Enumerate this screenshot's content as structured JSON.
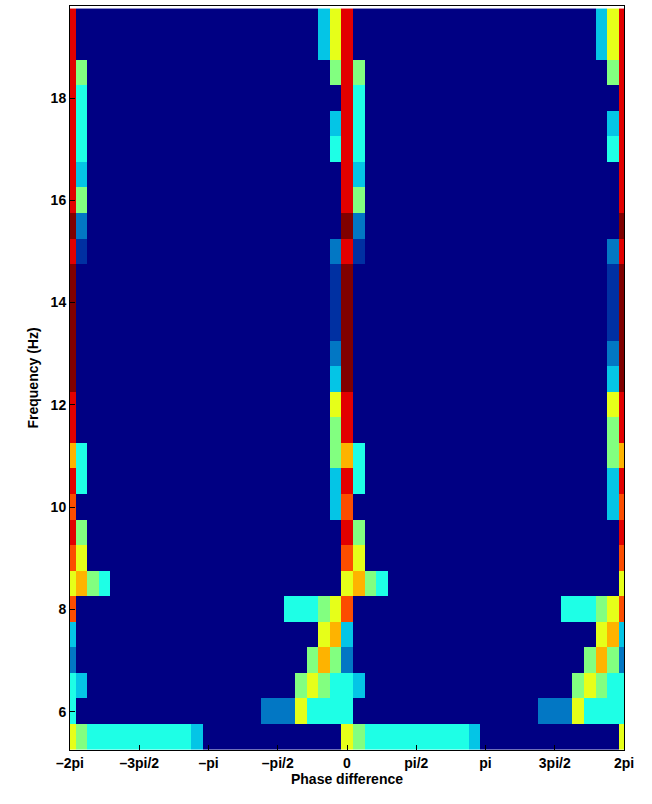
{
  "chart_data": {
    "type": "heatmap",
    "x_label": "Phase difference",
    "y_label": "Frequency (Hz)",
    "color": "jet",
    "grid": false,
    "color_range": [
      0,
      10
    ],
    "xlim": [
      -6.2832,
      6.2832
    ],
    "ylim": [
      5.25,
      19.8
    ],
    "xticks": [
      {
        "value": -6.2832,
        "label": "–2pi"
      },
      {
        "value": -4.7124,
        "label": "–3pi/2"
      },
      {
        "value": -3.1416,
        "label": "–pi"
      },
      {
        "value": -1.5708,
        "label": "–pi/2"
      },
      0,
      {
        "value": 1.5708,
        "label": "pi/2"
      },
      {
        "value": 3.1416,
        "label": "pi"
      },
      {
        "value": 4.7124,
        "label": "3pi/2"
      },
      {
        "value": 6.2832,
        "label": "2pi"
      }
    ],
    "yticks": [
      6,
      8,
      10,
      12,
      14,
      16,
      18
    ],
    "x": [
      -6.2832,
      -6.0214,
      -5.7596,
      -5.4978,
      -5.236,
      -4.9742,
      -4.7124,
      -4.4506,
      -4.1888,
      -3.927,
      -3.6652,
      -3.4034,
      -3.1416,
      -2.8798,
      -2.618,
      -2.3562,
      -2.0944,
      -1.8326,
      -1.5708,
      -1.309,
      -1.0472,
      -0.7854,
      -0.5236,
      -0.2618,
      0,
      0.2618,
      0.5236,
      0.7854,
      1.0472,
      1.309,
      1.5708,
      1.8326,
      2.0944,
      2.3562,
      2.618,
      2.8798,
      3.1416,
      3.4034,
      3.6652,
      3.927,
      4.1888,
      4.4506,
      4.7124,
      4.9742,
      5.236,
      5.4978,
      5.7596,
      6.0214,
      6.2832
    ],
    "y": [
      5.5,
      6,
      6.5,
      7,
      7.5,
      8,
      8.5,
      9,
      9.5,
      10,
      10.5,
      11,
      11.5,
      12,
      12.5,
      13,
      13.5,
      14,
      14.5,
      15,
      15.5,
      16,
      16.5,
      17,
      17.5,
      18,
      18.5,
      19,
      19.5
    ],
    "z": [
      [
        6,
        5,
        4,
        4,
        4,
        4,
        4,
        4,
        4,
        4,
        4,
        3,
        0,
        0,
        0,
        0,
        0,
        0,
        0,
        0,
        0,
        0,
        0,
        0,
        6,
        5,
        4,
        4,
        4,
        4,
        4,
        4,
        4,
        4,
        4,
        3,
        0,
        0,
        0,
        0,
        0,
        0,
        0,
        0,
        0,
        0,
        0,
        0,
        6
      ],
      [
        4,
        0,
        0,
        0,
        0,
        0,
        0,
        0,
        0,
        0,
        0,
        0,
        0,
        0,
        0,
        0,
        0,
        2,
        2,
        2,
        6,
        4,
        4,
        4,
        4,
        0,
        0,
        0,
        0,
        0,
        0,
        0,
        0,
        0,
        0,
        0,
        0,
        0,
        0,
        0,
        0,
        2,
        2,
        2,
        6,
        4,
        4,
        4,
        4
      ],
      [
        4,
        3,
        0,
        0,
        0,
        0,
        0,
        0,
        0,
        0,
        0,
        0,
        0,
        0,
        0,
        0,
        0,
        0,
        0,
        0,
        5,
        6,
        5,
        4,
        4,
        3,
        0,
        0,
        0,
        0,
        0,
        0,
        0,
        0,
        0,
        0,
        0,
        0,
        0,
        0,
        0,
        0,
        0,
        0,
        5,
        6,
        5,
        4,
        4
      ],
      [
        2,
        0,
        0,
        0,
        0,
        0,
        0,
        0,
        0,
        0,
        0,
        0,
        0,
        0,
        0,
        0,
        0,
        0,
        0,
        0,
        0,
        5,
        7,
        5,
        2,
        0,
        0,
        0,
        0,
        0,
        0,
        0,
        0,
        0,
        0,
        0,
        0,
        0,
        0,
        0,
        0,
        0,
        0,
        0,
        0,
        5,
        7,
        5,
        2
      ],
      [
        3,
        0,
        0,
        0,
        0,
        0,
        0,
        0,
        0,
        0,
        0,
        0,
        0,
        0,
        0,
        0,
        0,
        0,
        0,
        0,
        0,
        0,
        6,
        7,
        3,
        0,
        0,
        0,
        0,
        0,
        0,
        0,
        0,
        0,
        0,
        0,
        0,
        0,
        0,
        0,
        0,
        0,
        0,
        0,
        0,
        0,
        6,
        7,
        3
      ],
      [
        8,
        0,
        0,
        0,
        0,
        0,
        0,
        0,
        0,
        0,
        0,
        0,
        0,
        0,
        0,
        0,
        0,
        0,
        0,
        4,
        4,
        4,
        5,
        6,
        8,
        0,
        0,
        0,
        0,
        0,
        0,
        0,
        0,
        0,
        0,
        0,
        0,
        0,
        0,
        0,
        0,
        0,
        0,
        4,
        4,
        4,
        5,
        6,
        8
      ],
      [
        6,
        7,
        5,
        4,
        0,
        0,
        0,
        0,
        0,
        0,
        0,
        0,
        0,
        0,
        0,
        0,
        0,
        0,
        0,
        0,
        0,
        0,
        0,
        0,
        6,
        7,
        5,
        4,
        0,
        0,
        0,
        0,
        0,
        0,
        0,
        0,
        0,
        0,
        0,
        0,
        0,
        0,
        0,
        0,
        0,
        0,
        0,
        0,
        6
      ],
      [
        8,
        6,
        0,
        0,
        0,
        0,
        0,
        0,
        0,
        0,
        0,
        0,
        0,
        0,
        0,
        0,
        0,
        0,
        0,
        0,
        0,
        0,
        0,
        0,
        8,
        6,
        0,
        0,
        0,
        0,
        0,
        0,
        0,
        0,
        0,
        0,
        0,
        0,
        0,
        0,
        0,
        0,
        0,
        0,
        0,
        0,
        0,
        0,
        8
      ],
      [
        9,
        5,
        0,
        0,
        0,
        0,
        0,
        0,
        0,
        0,
        0,
        0,
        0,
        0,
        0,
        0,
        0,
        0,
        0,
        0,
        0,
        0,
        0,
        0,
        9,
        5,
        0,
        0,
        0,
        0,
        0,
        0,
        0,
        0,
        0,
        0,
        0,
        0,
        0,
        0,
        0,
        0,
        0,
        0,
        0,
        0,
        0,
        0,
        9
      ],
      [
        8,
        0,
        0,
        0,
        0,
        0,
        0,
        0,
        0,
        0,
        0,
        0,
        0,
        0,
        0,
        0,
        0,
        0,
        0,
        0,
        0,
        0,
        0,
        3,
        8,
        0,
        0,
        0,
        0,
        0,
        0,
        0,
        0,
        0,
        0,
        0,
        0,
        0,
        0,
        0,
        0,
        0,
        0,
        0,
        0,
        0,
        0,
        3,
        8
      ],
      [
        9,
        4,
        0,
        0,
        0,
        0,
        0,
        0,
        0,
        0,
        0,
        0,
        0,
        0,
        0,
        0,
        0,
        0,
        0,
        0,
        0,
        0,
        0,
        3,
        9,
        4,
        0,
        0,
        0,
        0,
        0,
        0,
        0,
        0,
        0,
        0,
        0,
        0,
        0,
        0,
        0,
        0,
        0,
        0,
        0,
        0,
        0,
        3,
        9
      ],
      [
        7,
        4,
        0,
        0,
        0,
        0,
        0,
        0,
        0,
        0,
        0,
        0,
        0,
        0,
        0,
        0,
        0,
        0,
        0,
        0,
        0,
        0,
        0,
        5,
        7,
        4,
        0,
        0,
        0,
        0,
        0,
        0,
        0,
        0,
        0,
        0,
        0,
        0,
        0,
        0,
        0,
        0,
        0,
        0,
        0,
        0,
        0,
        5,
        7
      ],
      [
        9,
        0,
        0,
        0,
        0,
        0,
        0,
        0,
        0,
        0,
        0,
        0,
        0,
        0,
        0,
        0,
        0,
        0,
        0,
        0,
        0,
        0,
        0,
        5,
        9,
        0,
        0,
        0,
        0,
        0,
        0,
        0,
        0,
        0,
        0,
        0,
        0,
        0,
        0,
        0,
        0,
        0,
        0,
        0,
        0,
        0,
        0,
        5,
        9
      ],
      [
        9,
        0,
        0,
        0,
        0,
        0,
        0,
        0,
        0,
        0,
        0,
        0,
        0,
        0,
        0,
        0,
        0,
        0,
        0,
        0,
        0,
        0,
        0,
        6,
        9,
        0,
        0,
        0,
        0,
        0,
        0,
        0,
        0,
        0,
        0,
        0,
        0,
        0,
        0,
        0,
        0,
        0,
        0,
        0,
        0,
        0,
        0,
        6,
        9
      ],
      [
        10,
        0,
        0,
        0,
        0,
        0,
        0,
        0,
        0,
        0,
        0,
        0,
        0,
        0,
        0,
        0,
        0,
        0,
        0,
        0,
        0,
        0,
        0,
        3,
        10,
        0,
        0,
        0,
        0,
        0,
        0,
        0,
        0,
        0,
        0,
        0,
        0,
        0,
        0,
        0,
        0,
        0,
        0,
        0,
        0,
        0,
        0,
        3,
        10
      ],
      [
        10,
        0,
        0,
        0,
        0,
        0,
        0,
        0,
        0,
        0,
        0,
        0,
        0,
        0,
        0,
        0,
        0,
        0,
        0,
        0,
        0,
        0,
        0,
        2,
        10,
        0,
        0,
        0,
        0,
        0,
        0,
        0,
        0,
        0,
        0,
        0,
        0,
        0,
        0,
        0,
        0,
        0,
        0,
        0,
        0,
        0,
        0,
        2,
        10
      ],
      [
        10,
        0,
        0,
        0,
        0,
        0,
        0,
        0,
        0,
        0,
        0,
        0,
        0,
        0,
        0,
        0,
        0,
        0,
        0,
        0,
        0,
        0,
        0,
        1,
        10,
        0,
        0,
        0,
        0,
        0,
        0,
        0,
        0,
        0,
        0,
        0,
        0,
        0,
        0,
        0,
        0,
        0,
        0,
        0,
        0,
        0,
        0,
        1,
        10
      ],
      [
        10,
        0,
        0,
        0,
        0,
        0,
        0,
        0,
        0,
        0,
        0,
        0,
        0,
        0,
        0,
        0,
        0,
        0,
        0,
        0,
        0,
        0,
        0,
        1,
        10,
        0,
        0,
        0,
        0,
        0,
        0,
        0,
        0,
        0,
        0,
        0,
        0,
        0,
        0,
        0,
        0,
        0,
        0,
        0,
        0,
        0,
        0,
        1,
        10
      ],
      [
        10,
        0,
        0,
        0,
        0,
        0,
        0,
        0,
        0,
        0,
        0,
        0,
        0,
        0,
        0,
        0,
        0,
        0,
        0,
        0,
        0,
        0,
        0,
        1,
        10,
        0,
        0,
        0,
        0,
        0,
        0,
        0,
        0,
        0,
        0,
        0,
        0,
        0,
        0,
        0,
        0,
        0,
        0,
        0,
        0,
        0,
        0,
        1,
        10
      ],
      [
        9,
        1,
        0,
        0,
        0,
        0,
        0,
        0,
        0,
        0,
        0,
        0,
        0,
        0,
        0,
        0,
        0,
        0,
        0,
        0,
        0,
        0,
        0,
        2,
        9,
        1,
        0,
        0,
        0,
        0,
        0,
        0,
        0,
        0,
        0,
        0,
        0,
        0,
        0,
        0,
        0,
        0,
        0,
        0,
        0,
        0,
        0,
        2,
        9
      ],
      [
        10,
        2,
        0,
        0,
        0,
        0,
        0,
        0,
        0,
        0,
        0,
        0,
        0,
        0,
        0,
        0,
        0,
        0,
        0,
        0,
        0,
        0,
        0,
        0,
        10,
        2,
        0,
        0,
        0,
        0,
        0,
        0,
        0,
        0,
        0,
        0,
        0,
        0,
        0,
        0,
        0,
        0,
        0,
        0,
        0,
        0,
        0,
        0,
        10
      ],
      [
        9,
        5,
        0,
        0,
        0,
        0,
        0,
        0,
        0,
        0,
        0,
        0,
        0,
        0,
        0,
        0,
        0,
        0,
        0,
        0,
        0,
        0,
        0,
        0,
        9,
        5,
        0,
        0,
        0,
        0,
        0,
        0,
        0,
        0,
        0,
        0,
        0,
        0,
        0,
        0,
        0,
        0,
        0,
        0,
        0,
        0,
        0,
        0,
        9
      ],
      [
        9,
        3,
        0,
        0,
        0,
        0,
        0,
        0,
        0,
        0,
        0,
        0,
        0,
        0,
        0,
        0,
        0,
        0,
        0,
        0,
        0,
        0,
        0,
        0,
        9,
        3,
        0,
        0,
        0,
        0,
        0,
        0,
        0,
        0,
        0,
        0,
        0,
        0,
        0,
        0,
        0,
        0,
        0,
        0,
        0,
        0,
        0,
        0,
        9
      ],
      [
        9,
        4,
        0,
        0,
        0,
        0,
        0,
        0,
        0,
        0,
        0,
        0,
        0,
        0,
        0,
        0,
        0,
        0,
        0,
        0,
        0,
        0,
        0,
        4,
        9,
        4,
        0,
        0,
        0,
        0,
        0,
        0,
        0,
        0,
        0,
        0,
        0,
        0,
        0,
        0,
        0,
        0,
        0,
        0,
        0,
        0,
        0,
        4,
        9
      ],
      [
        9,
        4,
        0,
        0,
        0,
        0,
        0,
        0,
        0,
        0,
        0,
        0,
        0,
        0,
        0,
        0,
        0,
        0,
        0,
        0,
        0,
        0,
        0,
        3,
        9,
        4,
        0,
        0,
        0,
        0,
        0,
        0,
        0,
        0,
        0,
        0,
        0,
        0,
        0,
        0,
        0,
        0,
        0,
        0,
        0,
        0,
        0,
        3,
        9
      ],
      [
        9,
        4,
        0,
        0,
        0,
        0,
        0,
        0,
        0,
        0,
        0,
        0,
        0,
        0,
        0,
        0,
        0,
        0,
        0,
        0,
        0,
        0,
        0,
        0,
        9,
        4,
        0,
        0,
        0,
        0,
        0,
        0,
        0,
        0,
        0,
        0,
        0,
        0,
        0,
        0,
        0,
        0,
        0,
        0,
        0,
        0,
        0,
        0,
        9
      ],
      [
        9,
        5,
        0,
        0,
        0,
        0,
        0,
        0,
        0,
        0,
        0,
        0,
        0,
        0,
        0,
        0,
        0,
        0,
        0,
        0,
        0,
        0,
        0,
        5,
        9,
        5,
        0,
        0,
        0,
        0,
        0,
        0,
        0,
        0,
        0,
        0,
        0,
        0,
        0,
        0,
        0,
        0,
        0,
        0,
        0,
        0,
        0,
        5,
        9
      ],
      [
        9,
        0,
        0,
        0,
        0,
        0,
        0,
        0,
        0,
        0,
        0,
        0,
        0,
        0,
        0,
        0,
        0,
        0,
        0,
        0,
        0,
        0,
        3,
        6,
        9,
        0,
        0,
        0,
        0,
        0,
        0,
        0,
        0,
        0,
        0,
        0,
        0,
        0,
        0,
        0,
        0,
        0,
        0,
        0,
        0,
        0,
        3,
        6,
        9
      ],
      [
        9,
        0,
        0,
        0,
        0,
        0,
        0,
        0,
        0,
        0,
        0,
        0,
        0,
        0,
        0,
        0,
        0,
        0,
        0,
        0,
        0,
        0,
        3,
        6,
        9,
        0,
        0,
        0,
        0,
        0,
        0,
        0,
        0,
        0,
        0,
        0,
        0,
        0,
        0,
        0,
        0,
        0,
        0,
        0,
        0,
        0,
        3,
        6,
        9
      ]
    ]
  }
}
